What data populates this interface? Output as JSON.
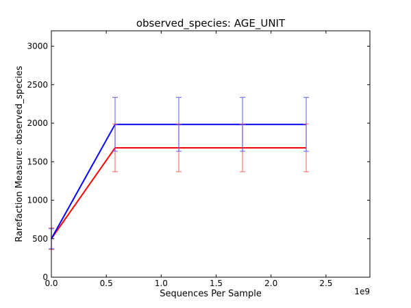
{
  "chart_data": {
    "type": "line",
    "title": "observed_species: AGE_UNIT",
    "xlabel": "Sequences Per Sample",
    "ylabel": "Rarefaction Measure: observed_species",
    "x_offset_label": "1e9",
    "xlim": [
      0.0,
      2.9
    ],
    "ylim": [
      0,
      3200
    ],
    "x_ticks": [
      0.0,
      0.5,
      1.0,
      1.5,
      2.0,
      2.5
    ],
    "x_tick_labels": [
      "0.0",
      "0.5",
      "1.0",
      "1.5",
      "2.0",
      "2.5"
    ],
    "y_ticks": [
      0,
      500,
      1000,
      1500,
      2000,
      2500,
      3000
    ],
    "y_tick_labels": [
      "0",
      "500",
      "1000",
      "1500",
      "2000",
      "2500",
      "3000"
    ],
    "grid": false,
    "x": [
      0.0,
      0.58,
      1.16,
      1.74,
      2.32
    ],
    "series": [
      {
        "values": [
          500,
          1680,
          1680,
          1680,
          1680
        ],
        "errors": [
          140,
          310,
          310,
          310,
          310
        ],
        "color": "#ff0000",
        "error_color": "#ff5555"
      },
      {
        "values": [
          500,
          1985,
          1985,
          1985,
          1985
        ],
        "errors": [
          130,
          350,
          350,
          350,
          350
        ],
        "color": "#0000ff",
        "error_color": "#5555ff"
      }
    ]
  }
}
